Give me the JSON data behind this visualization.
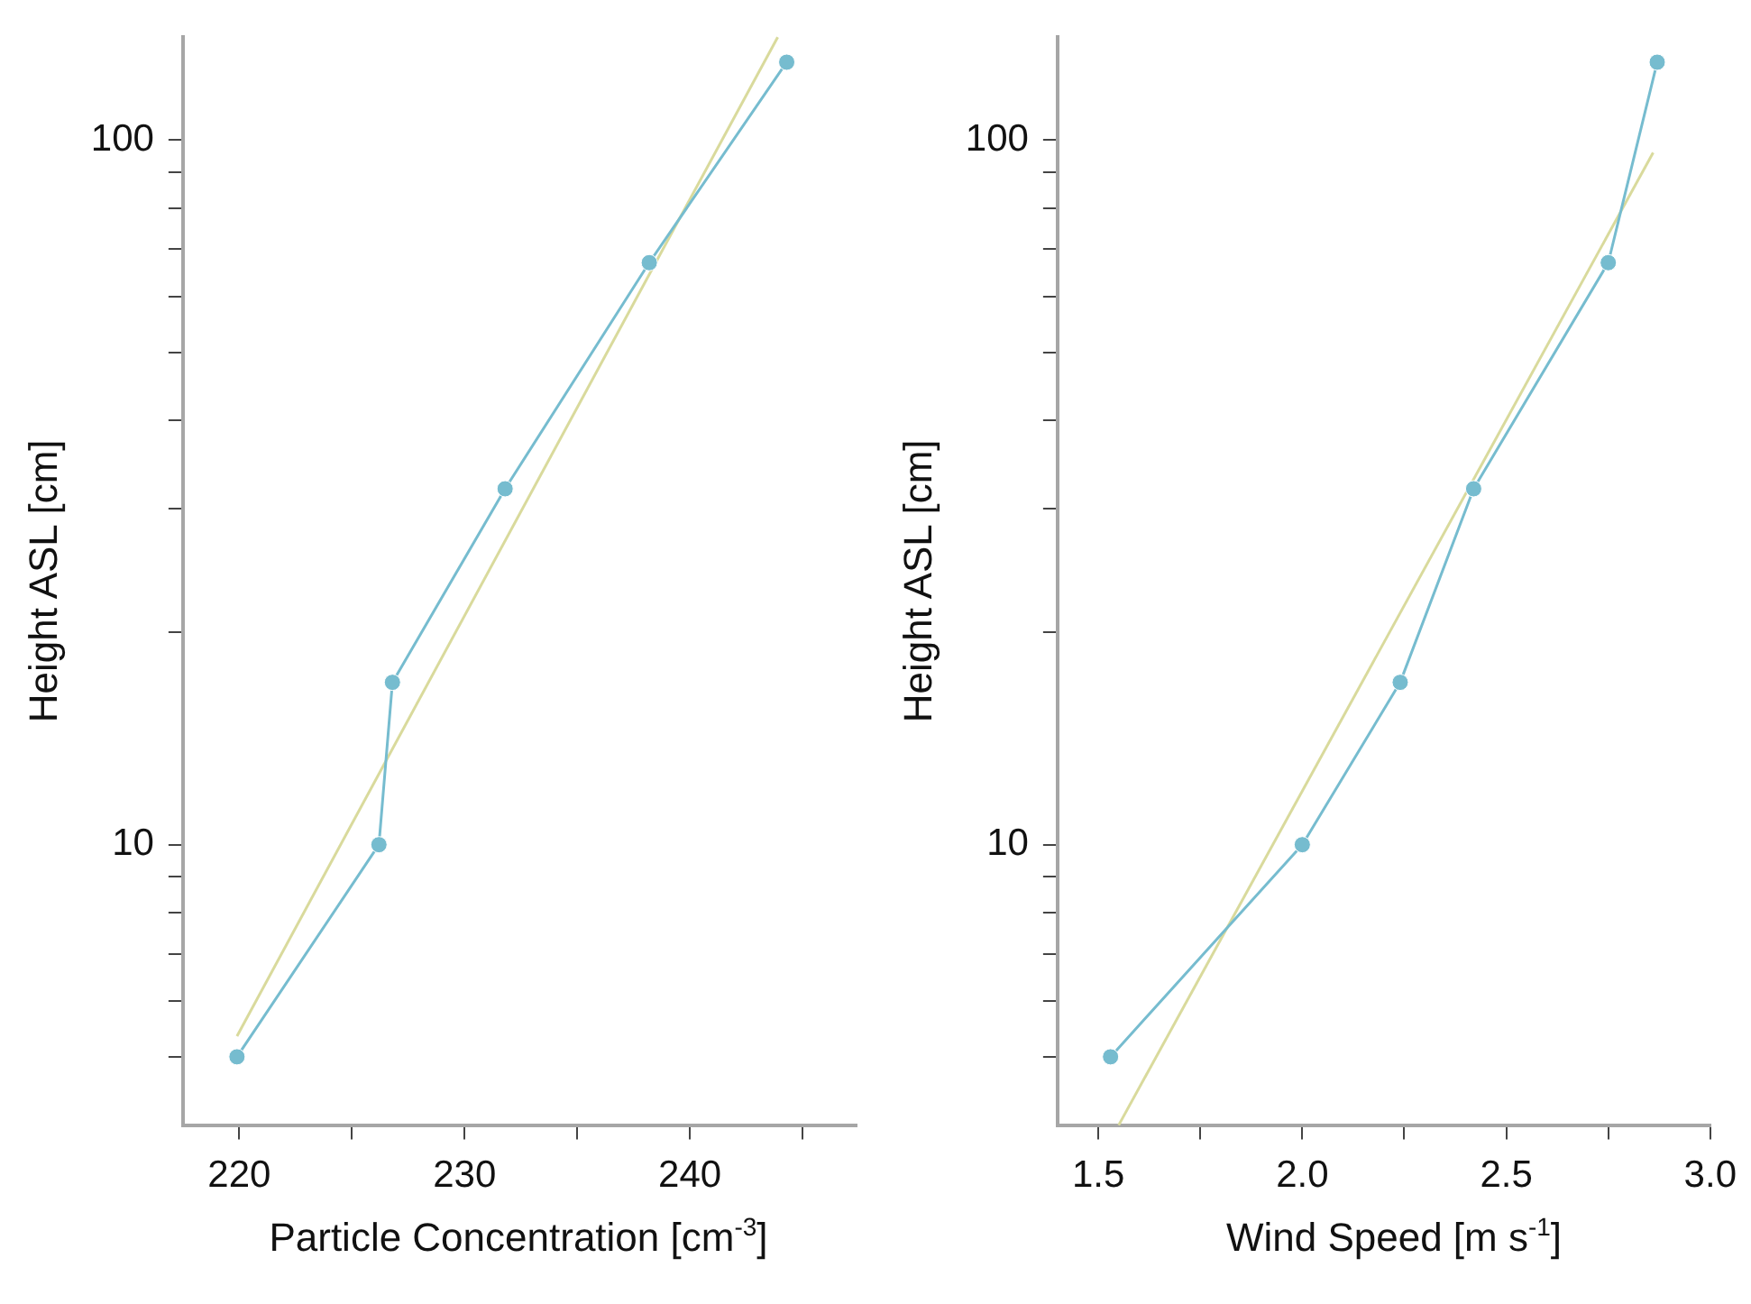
{
  "chart_data": [
    {
      "type": "line",
      "xlabel": "Particle Concentration [cm$^{-3}$]",
      "ylabel": "Height ASL [cm]",
      "log": "y",
      "grid": false,
      "legend": false,
      "xlim": [
        217.5,
        247.4
      ],
      "xticks": [
        220,
        {
          "value": 225,
          "label": null
        },
        230,
        {
          "value": 235,
          "label": null
        },
        240,
        {
          "value": 245,
          "label": null
        }
      ],
      "ylim": [
        4,
        140
      ],
      "yticks": [
        {
          "value": 5,
          "label": null
        },
        {
          "value": 6,
          "label": null
        },
        {
          "value": 7,
          "label": null
        },
        {
          "value": 8,
          "label": null
        },
        {
          "value": 9,
          "label": null
        },
        {
          "value": 10,
          "label": "10"
        },
        {
          "value": 20,
          "label": null
        },
        {
          "value": 30,
          "label": null
        },
        {
          "value": 40,
          "label": null
        },
        {
          "value": 50,
          "label": null
        },
        {
          "value": 60,
          "label": null
        },
        {
          "value": 70,
          "label": null
        },
        {
          "value": 80,
          "label": null
        },
        {
          "value": 90,
          "label": null
        },
        {
          "value": 100,
          "label": "100"
        }
      ],
      "series": [
        {
          "color": "#76bccf",
          "marker": "circle",
          "x": [
            219.9,
            226.2,
            226.8,
            231.8,
            238.2,
            244.3
          ],
          "values": [
            5,
            10,
            17,
            32,
            67,
            129
          ]
        },
        {
          "color": "#d9da9c",
          "marker": "none",
          "x": [
            219.9,
            243.9
          ],
          "values": [
            5.35,
            140
          ]
        }
      ]
    },
    {
      "type": "line",
      "xlabel": "Wind Speed [m s$^{-1}$]",
      "ylabel": "Height ASL [cm]",
      "log": "y",
      "grid": false,
      "legend": false,
      "xlim": [
        1.4,
        3.0
      ],
      "xticks": [
        1.5,
        {
          "value": 1.75,
          "label": null
        },
        {
          "value": 2,
          "label": "2.0"
        },
        {
          "value": 2.25,
          "label": null
        },
        2.5,
        {
          "value": 2.75,
          "label": null
        },
        {
          "value": 3,
          "label": "3.0"
        }
      ],
      "ylim": [
        4,
        140
      ],
      "yticks": [
        {
          "value": 5,
          "label": null
        },
        {
          "value": 6,
          "label": null
        },
        {
          "value": 7,
          "label": null
        },
        {
          "value": 8,
          "label": null
        },
        {
          "value": 9,
          "label": null
        },
        {
          "value": 10,
          "label": "10"
        },
        {
          "value": 20,
          "label": null
        },
        {
          "value": 30,
          "label": null
        },
        {
          "value": 40,
          "label": null
        },
        {
          "value": 50,
          "label": null
        },
        {
          "value": 60,
          "label": null
        },
        {
          "value": 70,
          "label": null
        },
        {
          "value": 80,
          "label": null
        },
        {
          "value": 90,
          "label": null
        },
        {
          "value": 100,
          "label": "100"
        }
      ],
      "series": [
        {
          "color": "#76bccf",
          "marker": "circle",
          "x": [
            1.53,
            2.0,
            2.24,
            2.42,
            2.75,
            2.87
          ],
          "values": [
            5,
            10,
            17,
            32,
            67,
            129
          ]
        },
        {
          "color": "#d9da9c",
          "marker": "none",
          "x": [
            1.55,
            2.86
          ],
          "values": [
            4,
            96
          ]
        }
      ]
    }
  ]
}
